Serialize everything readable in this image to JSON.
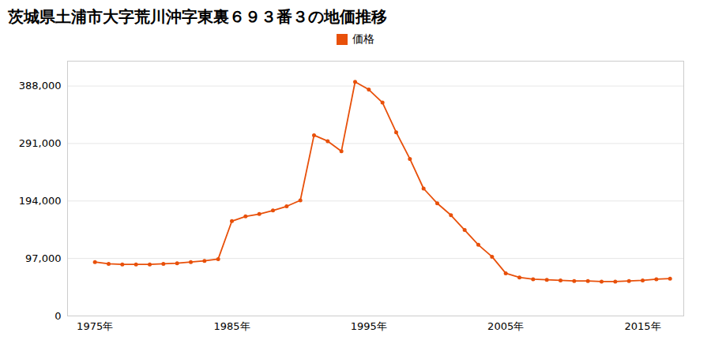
{
  "chart_data": {
    "type": "line",
    "title": "茨城県土浦市大字荒川沖字東裏６９３番３の地価推移",
    "x": [
      1975,
      1976,
      1977,
      1978,
      1979,
      1980,
      1981,
      1982,
      1983,
      1984,
      1985,
      1986,
      1987,
      1988,
      1989,
      1990,
      1991,
      1992,
      1993,
      1994,
      1995,
      1996,
      1997,
      1998,
      1999,
      2000,
      2001,
      2002,
      2003,
      2004,
      2005,
      2006,
      2007,
      2008,
      2009,
      2010,
      2011,
      2012,
      2013,
      2014,
      2015,
      2016,
      2017
    ],
    "series": [
      {
        "name": "価格",
        "color": "#E8500A",
        "marker": "circle",
        "values": [
          91000,
          88000,
          87000,
          87000,
          87000,
          88000,
          89000,
          91000,
          93000,
          96000,
          160000,
          168000,
          172000,
          178000,
          185000,
          195000,
          305000,
          295000,
          278000,
          395000,
          382000,
          360000,
          310000,
          265000,
          215000,
          190000,
          170000,
          145000,
          120000,
          100000,
          72000,
          65000,
          62000,
          61000,
          60000,
          59000,
          59000,
          58000,
          58000,
          59000,
          60000,
          62000,
          63000
        ]
      }
    ],
    "xlim": [
      1973,
      2018
    ],
    "xticks": [
      {
        "value": 1975,
        "label": "1975年"
      },
      {
        "value": 1985,
        "label": "1985年"
      },
      {
        "value": 1995,
        "label": "1995年"
      },
      {
        "value": 2005,
        "label": "2005年"
      },
      {
        "value": 2015,
        "label": "2015年"
      }
    ],
    "ylim": [
      0,
      430000
    ],
    "yticks": [
      0,
      {
        "value": 97000,
        "label": "97,000"
      },
      {
        "value": 194000,
        "label": "194,000"
      },
      {
        "value": 291000,
        "label": "291,000"
      },
      {
        "value": 388000,
        "label": "388,000"
      }
    ],
    "grid": "y",
    "legend": "top"
  }
}
